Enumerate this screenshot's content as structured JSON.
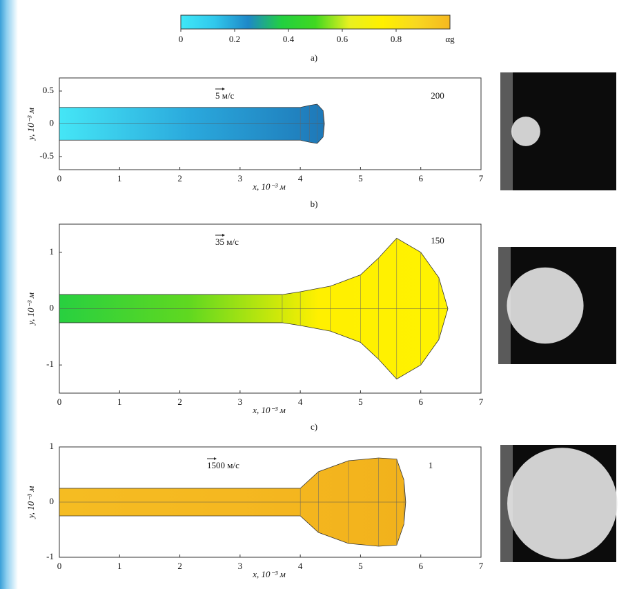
{
  "chart_data": [
    {
      "type": "colorbar",
      "lim": [
        0,
        1
      ],
      "ticks": [
        0,
        0.2,
        0.4,
        0.6,
        0.8
      ],
      "label": "αg",
      "colors": [
        "#3fe8f8",
        "#30c8ec",
        "#1e88c8",
        "#22d040",
        "#40d820",
        "#e8f020",
        "#fff000",
        "#f8d820",
        "#f5b820"
      ]
    },
    {
      "type": "jet",
      "label": "a)",
      "velocity": "5 м/с",
      "count": "200",
      "xlabel": "x, 10⁻³ м",
      "ylabel": "y, 10⁻³ м",
      "xlim": [
        0,
        7
      ],
      "ylim": [
        -0.7,
        0.7
      ],
      "xticks": [
        0,
        1,
        2,
        3,
        4,
        5,
        6,
        7
      ],
      "yticks": [
        -0.5,
        0,
        0.5
      ],
      "jet": {
        "x": [
          0,
          4.0,
          4.15,
          4.28,
          4.38,
          4.4
        ],
        "half_width": [
          0.25,
          0.25,
          0.28,
          0.3,
          0.2,
          0
        ],
        "colors": [
          "#45e6f6",
          "#2aa8dc",
          "#1e78b8"
        ]
      }
    },
    {
      "type": "jet",
      "label": "b)",
      "velocity": "35 м/с",
      "count": "150",
      "xlabel": "x, 10⁻³ м",
      "ylabel": "y, 10⁻³ м",
      "xlim": [
        0,
        7
      ],
      "ylim": [
        -1.5,
        1.5
      ],
      "xticks": [
        0,
        1,
        2,
        3,
        4,
        5,
        6,
        7
      ],
      "yticks": [
        -1,
        0,
        1
      ],
      "jet": {
        "x": [
          0,
          3.7,
          4.0,
          4.5,
          5.0,
          5.3,
          5.6,
          6.0,
          6.3,
          6.45
        ],
        "half_width": [
          0.25,
          0.25,
          0.3,
          0.4,
          0.6,
          0.9,
          1.25,
          1.0,
          0.55,
          0
        ],
        "colors": [
          "#28d040",
          "#60d820",
          "#fff000",
          "#fff200"
        ]
      }
    },
    {
      "type": "jet",
      "label": "c)",
      "velocity": "1500 м/с",
      "count": "1",
      "xlabel": "x, 10⁻³ м",
      "ylabel": "y, 10⁻³ м",
      "xlim": [
        0,
        7
      ],
      "ylim": [
        -1,
        1
      ],
      "xticks": [
        0,
        1,
        2,
        3,
        4,
        5,
        6,
        7
      ],
      "yticks": [
        -1,
        0,
        1
      ],
      "jet": {
        "x": [
          0,
          4.0,
          4.3,
          4.8,
          5.3,
          5.6,
          5.72,
          5.75
        ],
        "half_width": [
          0.25,
          0.25,
          0.55,
          0.75,
          0.8,
          0.78,
          0.4,
          0
        ],
        "colors": [
          "#f5bc22",
          "#f5b820",
          "#f2b21c"
        ]
      }
    }
  ]
}
